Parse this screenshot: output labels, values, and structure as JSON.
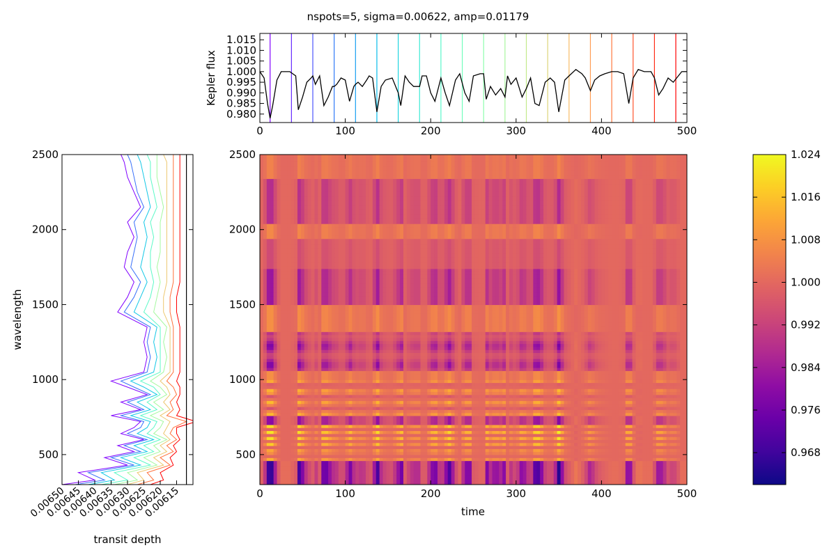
{
  "figure": {
    "title": "nspots=5, sigma=0.00622, amp=0.01179"
  },
  "colors": {
    "axes": "#000000",
    "kepler_line": "#000000",
    "background": "#ffffff",
    "colormap": "plasma",
    "spectra_colormap": "rainbow"
  },
  "chart_data": [
    {
      "name": "kepler_lightcurve",
      "type": "line",
      "ylabel": "Kepler flux",
      "xlabel": "",
      "xlim": [
        0,
        500
      ],
      "ylim": [
        0.976,
        1.018
      ],
      "xticks": [
        0,
        100,
        200,
        300,
        400,
        500
      ],
      "yticks": [
        "1.015",
        "1.010",
        "1.005",
        "1.000",
        "0.995",
        "0.990",
        "0.985",
        "0.980"
      ],
      "transit_times": [
        12,
        37,
        62,
        87,
        112,
        137,
        162,
        187,
        212,
        237,
        262,
        287,
        312,
        337,
        362,
        387,
        412,
        437,
        462,
        487
      ],
      "series": [
        {
          "x": [
            0,
            5,
            9,
            12,
            15,
            20,
            25,
            28,
            35,
            42,
            45,
            50,
            55,
            60,
            62,
            65,
            70,
            75,
            80,
            85,
            87,
            90,
            95,
            100,
            105,
            110,
            112,
            115,
            120,
            125,
            128,
            132,
            137,
            142,
            147,
            155,
            162,
            165,
            170,
            175,
            180,
            187,
            190,
            195,
            200,
            205,
            212,
            217,
            222,
            229,
            234,
            240,
            245,
            250,
            258,
            262,
            265,
            270,
            276,
            282,
            287,
            290,
            294,
            300,
            307,
            312,
            317,
            322,
            327,
            334,
            340,
            345,
            350,
            357,
            362,
            370,
            377,
            381,
            387,
            392,
            398,
            404,
            412,
            419,
            426,
            432,
            437,
            443,
            450,
            458,
            462,
            467,
            472,
            478,
            484,
            490,
            494,
            500
          ],
          "y": [
            1.0,
            0.997,
            0.985,
            0.978,
            0.984,
            0.996,
            1.0,
            1.0,
            1.0,
            0.998,
            0.982,
            0.988,
            0.995,
            0.997,
            0.998,
            0.994,
            0.998,
            0.984,
            0.988,
            0.993,
            0.993,
            0.994,
            0.997,
            0.996,
            0.986,
            0.993,
            0.994,
            0.995,
            0.993,
            0.996,
            0.998,
            0.997,
            0.981,
            0.993,
            0.996,
            0.997,
            0.99,
            0.984,
            0.998,
            0.995,
            0.993,
            0.993,
            0.998,
            0.998,
            0.99,
            0.986,
            0.997,
            0.99,
            0.984,
            0.996,
            0.999,
            0.99,
            0.986,
            0.998,
            0.999,
            0.999,
            0.987,
            0.993,
            0.989,
            0.992,
            0.988,
            0.998,
            0.994,
            0.997,
            0.988,
            0.992,
            0.997,
            0.985,
            0.984,
            0.995,
            0.997,
            0.995,
            0.981,
            0.996,
            0.998,
            1.001,
            0.999,
            0.997,
            0.991,
            0.996,
            0.998,
            0.999,
            1.0,
            1.0,
            0.999,
            0.985,
            0.997,
            1.001,
            1.0,
            1.0,
            0.997,
            0.989,
            0.992,
            0.997,
            0.995,
            0.998,
            1.0,
            1.0
          ]
        }
      ]
    },
    {
      "name": "transit_depth_spectra",
      "type": "line",
      "xlabel": "transit depth",
      "ylabel": "wavelength",
      "xlim": [
        0.0065,
        0.0061
      ],
      "ylim": [
        300,
        2500
      ],
      "xticks": [
        "0.00650",
        "0.00645",
        "0.00640",
        "0.00635",
        "0.00630",
        "0.00625",
        "0.00620",
        "0.00615"
      ],
      "yticks": [
        500,
        1000,
        1500,
        2000,
        2500
      ],
      "wavelengths": [
        300,
        330,
        380,
        430,
        480,
        520,
        560,
        600,
        640,
        680,
        720,
        760,
        800,
        850,
        900,
        950,
        990,
        1050,
        1150,
        1250,
        1350,
        1450,
        1550,
        1650,
        1750,
        1850,
        1950,
        2050,
        2150,
        2250,
        2350,
        2450,
        2500
      ],
      "reference_depth": 0.00612,
      "series": [
        {
          "name": "",
          "depths": [
            0.0065,
            0.0064,
            0.00645,
            0.0063,
            0.00637,
            0.00628,
            0.00633,
            0.00625,
            0.00632,
            0.00628,
            0.00626,
            0.00635,
            0.00626,
            0.00632,
            0.00624,
            0.0063,
            0.00635,
            0.00625,
            0.00624,
            0.00625,
            0.00624,
            0.00633,
            0.0063,
            0.00628,
            0.00631,
            0.0063,
            0.00628,
            0.0063,
            0.00626,
            0.00628,
            0.0063,
            0.00631,
            0.00632
          ]
        },
        {
          "name": "",
          "depths": [
            0.00646,
            0.00637,
            0.00642,
            0.00628,
            0.00635,
            0.00626,
            0.00631,
            0.00624,
            0.0063,
            0.00626,
            0.00625,
            0.00632,
            0.00625,
            0.0063,
            0.00623,
            0.00628,
            0.00632,
            0.00624,
            0.00623,
            0.00624,
            0.00623,
            0.00631,
            0.00628,
            0.00626,
            0.00629,
            0.00628,
            0.00627,
            0.00628,
            0.00625,
            0.00627,
            0.00628,
            0.00629,
            0.0063
          ]
        },
        {
          "name": "",
          "depths": [
            0.00642,
            0.00634,
            0.00638,
            0.00626,
            0.00632,
            0.00624,
            0.00628,
            0.00622,
            0.00627,
            0.00624,
            0.00623,
            0.00629,
            0.00623,
            0.00627,
            0.00621,
            0.00625,
            0.00629,
            0.00622,
            0.00621,
            0.00622,
            0.00621,
            0.00628,
            0.00626,
            0.00624,
            0.00626,
            0.00625,
            0.00624,
            0.00625,
            0.00623,
            0.00624,
            0.00625,
            0.00626,
            0.00627
          ]
        },
        {
          "name": "",
          "depths": [
            0.00638,
            0.0063,
            0.00634,
            0.00623,
            0.00628,
            0.00622,
            0.00625,
            0.0062,
            0.00624,
            0.00622,
            0.00621,
            0.00626,
            0.00621,
            0.00624,
            0.0062,
            0.00622,
            0.00626,
            0.0062,
            0.0062,
            0.0062,
            0.0062,
            0.00625,
            0.00623,
            0.00622,
            0.00623,
            0.00623,
            0.00622,
            0.00623,
            0.00621,
            0.00622,
            0.00623,
            0.00623,
            0.00624
          ]
        },
        {
          "name": "",
          "depths": [
            0.00634,
            0.00627,
            0.0063,
            0.00621,
            0.00625,
            0.0062,
            0.00622,
            0.00618,
            0.00622,
            0.0062,
            0.00619,
            0.00623,
            0.00619,
            0.00622,
            0.00618,
            0.0062,
            0.00623,
            0.00619,
            0.00618,
            0.00619,
            0.00618,
            0.00622,
            0.00621,
            0.0062,
            0.00621,
            0.0062,
            0.0062,
            0.0062,
            0.00619,
            0.0062,
            0.00621,
            0.00621,
            0.00621
          ]
        },
        {
          "name": "",
          "depths": [
            0.0063,
            0.00625,
            0.00627,
            0.00619,
            0.00622,
            0.00618,
            0.0062,
            0.00617,
            0.00619,
            0.00618,
            0.00617,
            0.0062,
            0.00617,
            0.00619,
            0.00617,
            0.00618,
            0.0062,
            0.00617,
            0.00617,
            0.00617,
            0.00617,
            0.00619,
            0.00619,
            0.00618,
            0.00618,
            0.00618,
            0.00618,
            0.00618,
            0.00618,
            0.00618,
            0.00618,
            0.00618,
            0.00619
          ]
        },
        {
          "name": "",
          "depths": [
            0.00627,
            0.00622,
            0.00624,
            0.00617,
            0.0062,
            0.00616,
            0.00618,
            0.00615,
            0.00617,
            0.00616,
            0.00612,
            0.00618,
            0.00616,
            0.00617,
            0.00615,
            0.00616,
            0.00618,
            0.00616,
            0.00616,
            0.00616,
            0.00616,
            0.00617,
            0.00617,
            0.00616,
            0.00616,
            0.00616,
            0.00616,
            0.00616,
            0.00616,
            0.00616,
            0.00616,
            0.00616,
            0.00616
          ]
        },
        {
          "name": "",
          "depths": [
            0.00623,
            0.00619,
            0.0062,
            0.00616,
            0.00617,
            0.00615,
            0.00616,
            0.00614,
            0.00615,
            0.00615,
            0.00609,
            0.00615,
            0.00614,
            0.00615,
            0.00614,
            0.00614,
            0.00615,
            0.00614,
            0.00614,
            0.00614,
            0.00614,
            0.00615,
            0.00615,
            0.00614,
            0.00614,
            0.00614,
            0.00614,
            0.00614,
            0.00614,
            0.00614,
            0.00614,
            0.00614,
            0.00614
          ]
        }
      ]
    },
    {
      "name": "flux_heatmap",
      "type": "heatmap",
      "xlabel": "time",
      "ylabel": "",
      "xlim": [
        0,
        500
      ],
      "ylim": [
        300,
        2500
      ],
      "xticks": [
        0,
        100,
        200,
        300,
        400,
        500
      ],
      "yticks": [
        500,
        1000,
        1500,
        2000,
        2500
      ],
      "colorbar": {
        "min": 0.962,
        "max": 1.024,
        "ticks": [
          "1.024",
          "1.016",
          "1.008",
          "1.000",
          "0.992",
          "0.984",
          "0.976",
          "0.968"
        ]
      }
    }
  ]
}
